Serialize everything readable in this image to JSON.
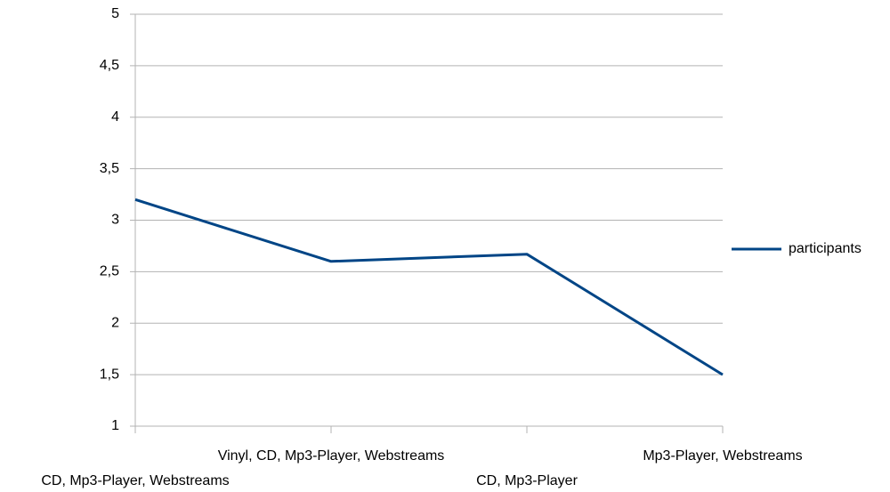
{
  "chart_data": {
    "type": "line",
    "categories": [
      "CD, Mp3-Player, Webstreams",
      "Vinyl, CD, Mp3-Player, Webstreams",
      "CD, Mp3-Player",
      "Mp3-Player, Webstreams"
    ],
    "series": [
      {
        "name": "participants",
        "color": "#004586",
        "values": [
          3.2,
          2.6,
          2.67,
          1.5
        ]
      }
    ],
    "ylim": [
      1,
      5
    ],
    "yticks": [
      1,
      {
        "value": 1.5,
        "label": "1,5"
      },
      2,
      {
        "value": 2.5,
        "label": "2,5"
      },
      3,
      {
        "value": 3.5,
        "label": "3,5"
      },
      4,
      {
        "value": 4.5,
        "label": "4,5"
      },
      5
    ],
    "grid": true,
    "legend": "right"
  }
}
